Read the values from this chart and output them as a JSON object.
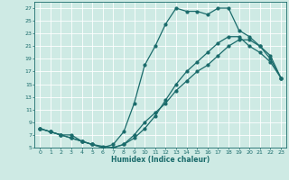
{
  "xlabel": "Humidex (Indice chaleur)",
  "bg_color": "#ceeae4",
  "grid_color": "#ffffff",
  "line_color": "#1a6b6b",
  "xlim": [
    -0.5,
    23.5
  ],
  "ylim": [
    5,
    28
  ],
  "yticks": [
    5,
    7,
    9,
    11,
    13,
    15,
    17,
    19,
    21,
    23,
    25,
    27
  ],
  "xticks": [
    0,
    1,
    2,
    3,
    4,
    5,
    6,
    7,
    8,
    9,
    10,
    11,
    12,
    13,
    14,
    15,
    16,
    17,
    18,
    19,
    20,
    21,
    22,
    23
  ],
  "curve1_x": [
    0,
    1,
    2,
    3,
    4,
    5,
    6,
    7,
    8,
    9,
    10,
    11,
    12,
    13,
    14,
    15,
    16,
    17,
    18,
    19,
    20,
    21,
    22,
    23
  ],
  "curve1_y": [
    8,
    7.5,
    7,
    7,
    6,
    5.5,
    5,
    5.5,
    7.5,
    12,
    18,
    21,
    24.5,
    27,
    26.5,
    26.5,
    26,
    27,
    27,
    23.5,
    22.5,
    21,
    19,
    16
  ],
  "curve2_x": [
    0,
    1,
    2,
    3,
    4,
    5,
    6,
    7,
    8,
    9,
    10,
    11,
    12,
    13,
    14,
    15,
    16,
    17,
    18,
    19,
    20,
    21,
    22,
    23
  ],
  "curve2_y": [
    8,
    7.5,
    7,
    6.5,
    6,
    5.5,
    5,
    5,
    5.5,
    6.5,
    8,
    10,
    12.5,
    15,
    17,
    18.5,
    20,
    21.5,
    22.5,
    22.5,
    21,
    20,
    18.5,
    16
  ],
  "curve3_x": [
    0,
    1,
    2,
    3,
    4,
    5,
    6,
    7,
    8,
    9,
    10,
    11,
    12,
    13,
    14,
    15,
    16,
    17,
    18,
    19,
    20,
    21,
    22,
    23
  ],
  "curve3_y": [
    8,
    7.5,
    7,
    6.5,
    6,
    5.5,
    5.2,
    5,
    5.5,
    7,
    9,
    10.5,
    12,
    14,
    15.5,
    17,
    18,
    19.5,
    21,
    22,
    22,
    21,
    19.5,
    16
  ]
}
